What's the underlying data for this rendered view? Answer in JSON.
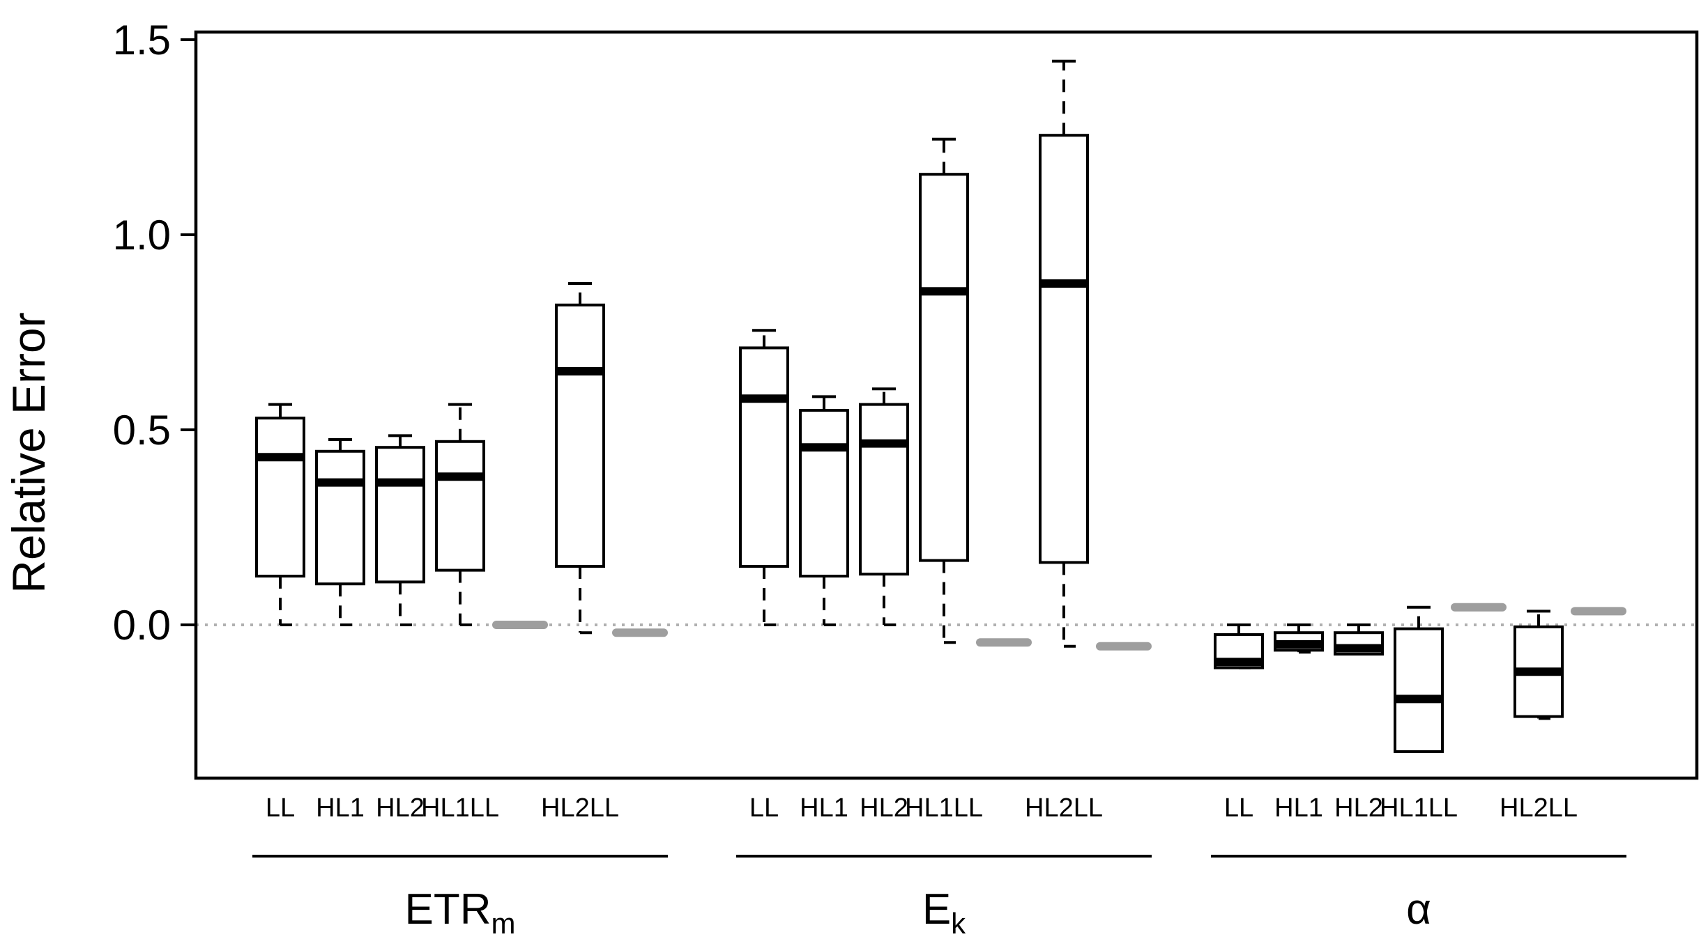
{
  "chart_data": {
    "type": "boxplot",
    "ylabel": "Relative Error",
    "xlabel": "",
    "ylim": [
      -0.4,
      1.5
    ],
    "yticks": [
      0.0,
      0.5,
      1.0,
      1.5
    ],
    "ytick_labels": [
      "0.0",
      "0.5",
      "1.0",
      "1.5"
    ],
    "reference_line": 0.0,
    "groups": [
      {
        "label": "ETR",
        "label_sub": "m",
        "items": [
          {
            "label": "LL",
            "kind": "box",
            "whisker_low": 0.0,
            "q1": 0.125,
            "median": 0.43,
            "q3": 0.53,
            "whisker_high": 0.565
          },
          {
            "label": "HL1",
            "kind": "box",
            "whisker_low": 0.0,
            "q1": 0.105,
            "median": 0.365,
            "q3": 0.445,
            "whisker_high": 0.475
          },
          {
            "label": "HL2",
            "kind": "box",
            "whisker_low": 0.0,
            "q1": 0.11,
            "median": 0.365,
            "q3": 0.455,
            "whisker_high": 0.485
          },
          {
            "label": "HL1LL",
            "kind": "box",
            "whisker_low": 0.0,
            "q1": 0.14,
            "median": 0.38,
            "q3": 0.47,
            "whisker_high": 0.565
          },
          {
            "label": "",
            "kind": "point",
            "value": 0.0
          },
          {
            "label": "HL2LL",
            "kind": "box",
            "whisker_low": -0.02,
            "q1": 0.15,
            "median": 0.65,
            "q3": 0.82,
            "whisker_high": 0.875
          },
          {
            "label": "",
            "kind": "point",
            "value": -0.02
          }
        ]
      },
      {
        "label": "E",
        "label_sub": "k",
        "items": [
          {
            "label": "LL",
            "kind": "box",
            "whisker_low": 0.0,
            "q1": 0.15,
            "median": 0.58,
            "q3": 0.71,
            "whisker_high": 0.755
          },
          {
            "label": "HL1",
            "kind": "box",
            "whisker_low": 0.0,
            "q1": 0.125,
            "median": 0.455,
            "q3": 0.55,
            "whisker_high": 0.585
          },
          {
            "label": "HL2",
            "kind": "box",
            "whisker_low": 0.0,
            "q1": 0.13,
            "median": 0.465,
            "q3": 0.565,
            "whisker_high": 0.605
          },
          {
            "label": "HL1LL",
            "kind": "box",
            "whisker_low": -0.045,
            "q1": 0.165,
            "median": 0.855,
            "q3": 1.155,
            "whisker_high": 1.245
          },
          {
            "label": "",
            "kind": "point",
            "value": -0.045
          },
          {
            "label": "HL2LL",
            "kind": "box",
            "whisker_low": -0.055,
            "q1": 0.16,
            "median": 0.875,
            "q3": 1.255,
            "whisker_high": 1.445
          },
          {
            "label": "",
            "kind": "point",
            "value": -0.055
          }
        ]
      },
      {
        "label": "α",
        "label_sub": "",
        "items": [
          {
            "label": "LL",
            "kind": "box",
            "whisker_low": -0.11,
            "q1": -0.11,
            "median": -0.095,
            "q3": -0.025,
            "whisker_high": 0.0
          },
          {
            "label": "HL1",
            "kind": "box",
            "whisker_low": -0.07,
            "q1": -0.065,
            "median": -0.05,
            "q3": -0.02,
            "whisker_high": 0.0
          },
          {
            "label": "HL2",
            "kind": "box",
            "whisker_low": -0.075,
            "q1": -0.075,
            "median": -0.06,
            "q3": -0.02,
            "whisker_high": 0.0
          },
          {
            "label": "HL1LL",
            "kind": "box",
            "whisker_low": -0.325,
            "q1": -0.325,
            "median": -0.19,
            "q3": -0.01,
            "whisker_high": 0.045
          },
          {
            "label": "",
            "kind": "point",
            "value": 0.045
          },
          {
            "label": "HL2LL",
            "kind": "box",
            "whisker_low": -0.24,
            "q1": -0.235,
            "median": -0.12,
            "q3": -0.005,
            "whisker_high": 0.035
          },
          {
            "label": "",
            "kind": "point",
            "value": 0.035
          }
        ]
      }
    ],
    "colors": {
      "box_stroke": "#000000",
      "median": "#000000",
      "point": "#9e9e9e",
      "reference_line": "#b0b0b0"
    }
  }
}
